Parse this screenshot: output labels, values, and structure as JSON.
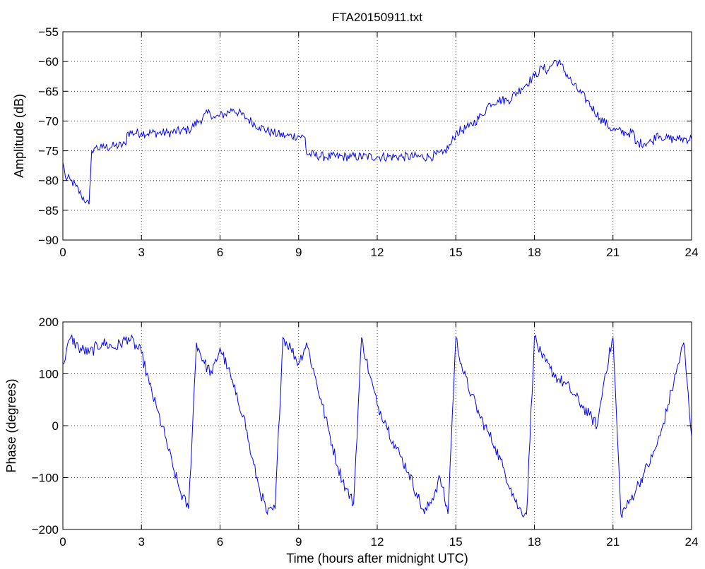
{
  "chart_data": [
    {
      "type": "line",
      "title": "FTA20150911.txt",
      "xlabel": "",
      "ylabel": "Amplitude (dB)",
      "xlim": [
        0,
        24
      ],
      "ylim": [
        -90,
        -55
      ],
      "xticks": [
        0,
        3,
        6,
        9,
        12,
        15,
        18,
        21,
        24
      ],
      "yticks": [
        -90,
        -85,
        -80,
        -75,
        -70,
        -65,
        -60,
        -55
      ],
      "xtick_labels": [
        "0",
        "3",
        "6",
        "9",
        "12",
        "15",
        "18",
        "21",
        "24"
      ],
      "ytick_labels": [
        "−90",
        "−85",
        "−80",
        "−75",
        "−70",
        "−65",
        "−60",
        "−55"
      ],
      "grid": true,
      "line_color": "#0000ff",
      "series": [
        {
          "x": [
            0,
            0.1,
            0.3,
            0.5,
            0.7,
            0.9,
            1.0,
            1.05,
            1.1,
            1.2,
            1.5,
            2.0,
            2.4,
            2.45,
            3.0,
            4.0,
            4.8,
            5.2,
            5.6,
            5.8,
            6.2,
            6.5,
            7.0,
            7.5,
            8.0,
            8.5,
            9.0,
            9.25,
            9.3,
            10.0,
            11.0,
            12.0,
            13.0,
            14.0,
            14.5,
            14.8,
            15.0,
            15.5,
            16.0,
            16.3,
            16.6,
            17.0,
            17.5,
            18.0,
            18.3,
            18.5,
            18.8,
            19.0,
            19.5,
            20.0,
            20.5,
            21.0,
            21.5,
            21.8,
            21.85,
            22.5,
            22.7,
            23.0,
            23.5,
            24.0
          ],
          "y": [
            -77,
            -79.5,
            -80,
            -81,
            -82.5,
            -83.5,
            -84,
            -80,
            -75,
            -74.5,
            -74.5,
            -74.2,
            -74,
            -72,
            -72,
            -72,
            -71.5,
            -70,
            -68.5,
            -69.5,
            -68.8,
            -68,
            -69.5,
            -71,
            -72,
            -72.5,
            -72.5,
            -72.8,
            -75.5,
            -76,
            -76,
            -76,
            -76,
            -76,
            -75.5,
            -74,
            -72,
            -71,
            -69,
            -67,
            -66.5,
            -66.5,
            -64.5,
            -62.5,
            -61,
            -61.5,
            -59.8,
            -60.5,
            -64,
            -66.5,
            -69.5,
            -71.5,
            -72,
            -72,
            -73.8,
            -73.5,
            -72,
            -73,
            -73,
            -73
          ]
        }
      ]
    },
    {
      "type": "line",
      "title": "",
      "xlabel": "Time (hours after midnight UTC)",
      "ylabel": "Phase (degrees)",
      "xlim": [
        0,
        24
      ],
      "ylim": [
        -200,
        200
      ],
      "xticks": [
        0,
        3,
        6,
        9,
        12,
        15,
        18,
        21,
        24
      ],
      "yticks": [
        -200,
        -100,
        0,
        100,
        200
      ],
      "xtick_labels": [
        "0",
        "3",
        "6",
        "9",
        "12",
        "15",
        "18",
        "21",
        "24"
      ],
      "ytick_labels": [
        "−200",
        "−100",
        "0",
        "100",
        "200"
      ],
      "grid": true,
      "line_color": "#0000ff",
      "series": [
        {
          "x": [
            0,
            0.3,
            0.6,
            1.0,
            1.5,
            2.0,
            2.5,
            3.0,
            3.3,
            3.6,
            3.9,
            4.2,
            4.5,
            4.8,
            5.1,
            5.4,
            5.7,
            6.0,
            6.3,
            6.6,
            6.9,
            7.2,
            7.5,
            7.8,
            8.1,
            8.4,
            8.7,
            9.0,
            9.3,
            9.6,
            9.9,
            10.2,
            10.5,
            10.8,
            11.1,
            11.4,
            11.7,
            12.0,
            12.3,
            12.6,
            12.9,
            13.2,
            13.5,
            13.8,
            14.1,
            14.4,
            14.7,
            15.0,
            15.3,
            15.6,
            15.9,
            16.2,
            16.5,
            16.8,
            17.1,
            17.4,
            17.7,
            18.0,
            18.3,
            18.6,
            18.9,
            19.2,
            19.5,
            19.8,
            20.1,
            20.4,
            20.7,
            21.0,
            21.3,
            21.6,
            21.9,
            22.2,
            22.5,
            22.8,
            23.1,
            23.4,
            23.7,
            24.0
          ],
          "y": [
            120,
            170,
            150,
            140,
            160,
            150,
            170,
            140,
            80,
            30,
            -20,
            -80,
            -130,
            -160,
            160,
            120,
            100,
            150,
            110,
            60,
            20,
            -60,
            -120,
            -170,
            -160,
            170,
            150,
            120,
            160,
            100,
            40,
            -20,
            -80,
            -120,
            -150,
            170,
            100,
            40,
            10,
            -30,
            -60,
            -90,
            -130,
            -170,
            -140,
            -100,
            -170,
            170,
            100,
            60,
            20,
            -10,
            -40,
            -80,
            -120,
            -160,
            -170,
            170,
            130,
            110,
            90,
            80,
            60,
            40,
            20,
            0,
            100,
            170,
            -170,
            -150,
            -120,
            -90,
            -60,
            -20,
            40,
            100,
            160,
            -20
          ]
        }
      ]
    }
  ]
}
